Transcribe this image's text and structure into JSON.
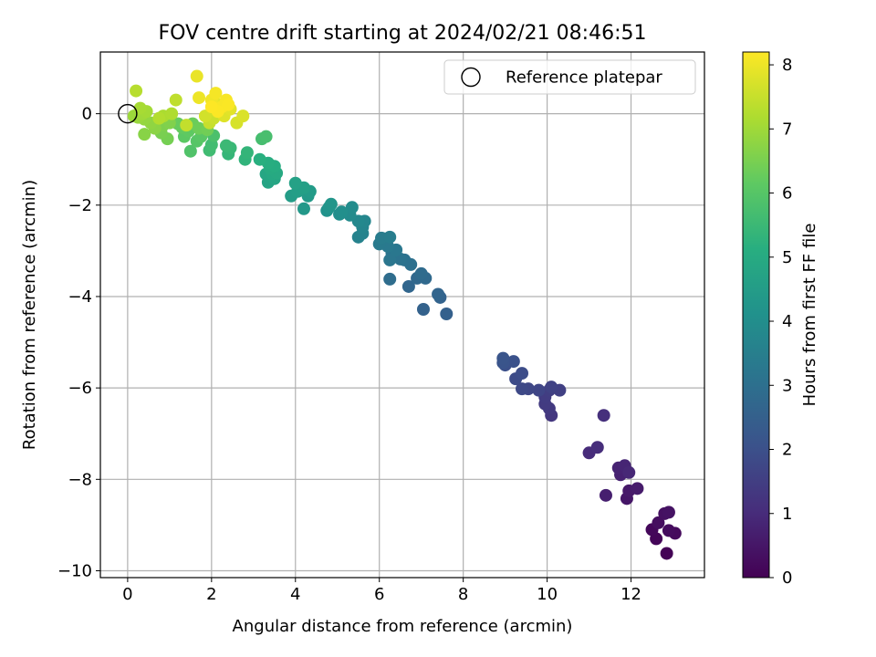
{
  "chart_data": {
    "type": "scatter",
    "title": "FOV centre drift starting at 2024/02/21 08:46:51",
    "xlabel": "Angular distance from reference (arcmin)",
    "ylabel": "Rotation from reference (arcmin)",
    "xlim": [
      -0.65,
      13.75
    ],
    "ylim": [
      -10.15,
      1.35
    ],
    "xticks": [
      0,
      2,
      4,
      6,
      8,
      10,
      12
    ],
    "yticks": [
      0,
      -2,
      -4,
      -6,
      -8,
      -10
    ],
    "grid": true,
    "legend": {
      "placement": "top-right",
      "entries": [
        "Reference platepar"
      ]
    },
    "reference_point": {
      "x": 0,
      "y": 0,
      "label": "Reference platepar"
    },
    "colorbar": {
      "label": "Hours from first FF file",
      "min": 0,
      "max": 8.2,
      "ticks": [
        0,
        1,
        2,
        3,
        4,
        5,
        6,
        7,
        8
      ],
      "colormap": "viridis"
    },
    "points": [
      [
        12.85,
        -9.62,
        0.05
      ],
      [
        12.6,
        -9.3,
        0.1
      ],
      [
        12.5,
        -9.1,
        0.15
      ],
      [
        13.05,
        -9.18,
        0.2
      ],
      [
        12.9,
        -9.12,
        0.25
      ],
      [
        12.65,
        -8.95,
        0.3
      ],
      [
        12.8,
        -8.75,
        0.35
      ],
      [
        12.9,
        -8.72,
        0.4
      ],
      [
        11.9,
        -8.42,
        0.5
      ],
      [
        11.95,
        -8.25,
        0.55
      ],
      [
        12.15,
        -8.2,
        0.6
      ],
      [
        11.4,
        -8.35,
        0.7
      ],
      [
        11.75,
        -7.9,
        0.75
      ],
      [
        11.7,
        -7.75,
        0.8
      ],
      [
        11.85,
        -7.7,
        0.85
      ],
      [
        11.95,
        -7.85,
        0.9
      ],
      [
        11.0,
        -7.42,
        1.0
      ],
      [
        11.2,
        -7.3,
        1.05
      ],
      [
        11.35,
        -6.6,
        1.1
      ],
      [
        10.1,
        -6.6,
        1.3
      ],
      [
        10.05,
        -6.45,
        1.35
      ],
      [
        9.95,
        -6.35,
        1.4
      ],
      [
        9.95,
        -6.2,
        1.45
      ],
      [
        10.05,
        -6.05,
        1.5
      ],
      [
        10.3,
        -6.05,
        1.55
      ],
      [
        10.1,
        -5.98,
        1.6
      ],
      [
        9.8,
        -6.05,
        1.7
      ],
      [
        9.55,
        -6.02,
        1.75
      ],
      [
        9.4,
        -6.02,
        1.8
      ],
      [
        9.25,
        -5.8,
        1.85
      ],
      [
        9.4,
        -5.68,
        1.9
      ],
      [
        9.0,
        -5.5,
        2.0
      ],
      [
        9.2,
        -5.42,
        2.05
      ],
      [
        8.95,
        -5.45,
        2.1
      ],
      [
        8.95,
        -5.35,
        2.15
      ],
      [
        7.6,
        -4.38,
        2.5
      ],
      [
        7.05,
        -4.28,
        2.55
      ],
      [
        7.45,
        -4.02,
        2.6
      ],
      [
        7.4,
        -3.95,
        2.65
      ],
      [
        6.7,
        -3.78,
        2.7
      ],
      [
        6.9,
        -3.6,
        2.75
      ],
      [
        7.1,
        -3.6,
        2.8
      ],
      [
        7.0,
        -3.5,
        2.85
      ],
      [
        6.25,
        -3.62,
        2.9
      ],
      [
        6.75,
        -3.3,
        3.0
      ],
      [
        6.6,
        -3.2,
        3.05
      ],
      [
        6.5,
        -3.18,
        3.1
      ],
      [
        6.3,
        -3.05,
        3.15
      ],
      [
        6.25,
        -3.2,
        3.2
      ],
      [
        6.4,
        -2.98,
        3.25
      ],
      [
        6.2,
        -2.9,
        3.3
      ],
      [
        6.0,
        -2.85,
        3.35
      ],
      [
        6.05,
        -2.72,
        3.4
      ],
      [
        6.25,
        -2.7,
        3.45
      ],
      [
        5.5,
        -2.7,
        3.6
      ],
      [
        5.6,
        -2.62,
        3.65
      ],
      [
        5.6,
        -2.48,
        3.7
      ],
      [
        5.65,
        -2.35,
        3.75
      ],
      [
        5.5,
        -2.35,
        3.8
      ],
      [
        5.3,
        -2.22,
        3.9
      ],
      [
        5.35,
        -2.05,
        3.95
      ],
      [
        5.05,
        -2.2,
        4.0
      ],
      [
        5.1,
        -2.15,
        4.05
      ],
      [
        4.75,
        -2.12,
        4.15
      ],
      [
        4.8,
        -2.05,
        4.2
      ],
      [
        4.85,
        -1.98,
        4.25
      ],
      [
        4.2,
        -2.08,
        4.35
      ],
      [
        4.3,
        -1.8,
        4.4
      ],
      [
        4.35,
        -1.7,
        4.45
      ],
      [
        3.9,
        -1.8,
        4.5
      ],
      [
        4.05,
        -1.7,
        4.55
      ],
      [
        4.2,
        -1.62,
        4.6
      ],
      [
        4.0,
        -1.52,
        4.65
      ],
      [
        3.35,
        -1.5,
        4.75
      ],
      [
        3.5,
        -1.42,
        4.8
      ],
      [
        3.3,
        -1.32,
        4.85
      ],
      [
        3.45,
        -1.32,
        4.9
      ],
      [
        3.55,
        -1.3,
        4.95
      ],
      [
        3.4,
        -1.2,
        5.0
      ],
      [
        3.5,
        -1.15,
        5.05
      ],
      [
        3.35,
        -1.08,
        5.1
      ],
      [
        3.15,
        -1.0,
        5.15
      ],
      [
        2.8,
        -1.0,
        5.3
      ],
      [
        2.85,
        -0.85,
        5.35
      ],
      [
        2.4,
        -0.88,
        5.4
      ],
      [
        2.45,
        -0.75,
        5.45
      ],
      [
        2.35,
        -0.7,
        5.5
      ],
      [
        1.95,
        -0.8,
        5.6
      ],
      [
        2.0,
        -0.68,
        5.65
      ],
      [
        3.2,
        -0.55,
        5.7
      ],
      [
        3.3,
        -0.5,
        5.75
      ],
      [
        2.05,
        -0.48,
        5.8
      ],
      [
        1.5,
        -0.82,
        5.9
      ],
      [
        1.65,
        -0.6,
        6.0
      ],
      [
        1.75,
        -0.5,
        6.05
      ],
      [
        1.35,
        -0.5,
        6.1
      ],
      [
        1.45,
        -0.38,
        6.15
      ],
      [
        1.3,
        -0.3,
        6.2
      ],
      [
        1.2,
        -0.22,
        6.25
      ],
      [
        1.55,
        -0.22,
        6.3
      ],
      [
        1.7,
        -0.32,
        6.35
      ],
      [
        1.9,
        -0.35,
        6.4
      ],
      [
        0.95,
        -0.55,
        6.45
      ],
      [
        0.8,
        -0.42,
        6.5
      ],
      [
        0.85,
        -0.25,
        6.55
      ],
      [
        1.0,
        -0.2,
        6.6
      ],
      [
        0.4,
        -0.45,
        6.7
      ],
      [
        0.65,
        -0.32,
        6.75
      ],
      [
        0.55,
        -0.2,
        6.8
      ],
      [
        0.4,
        -0.12,
        6.85
      ],
      [
        0.25,
        -0.08,
        6.9
      ],
      [
        0.15,
        -0.05,
        6.95
      ],
      [
        0.35,
        0.0,
        7.0
      ],
      [
        0.45,
        0.05,
        7.05
      ],
      [
        0.3,
        0.12,
        7.1
      ],
      [
        0.85,
        -0.05,
        7.15
      ],
      [
        1.05,
        0.0,
        7.2
      ],
      [
        0.75,
        -0.1,
        7.25
      ],
      [
        0.2,
        0.5,
        7.3
      ],
      [
        1.15,
        0.3,
        7.4
      ],
      [
        1.4,
        -0.25,
        7.45
      ],
      [
        1.95,
        -0.2,
        7.5
      ],
      [
        2.05,
        -0.1,
        7.55
      ],
      [
        2.1,
        0.05,
        7.6
      ],
      [
        1.85,
        -0.05,
        7.65
      ],
      [
        2.6,
        -0.2,
        7.7
      ],
      [
        2.75,
        -0.05,
        7.75
      ],
      [
        2.3,
        -0.05,
        7.8
      ],
      [
        2.45,
        0.1,
        7.85
      ],
      [
        2.2,
        0.2,
        7.9
      ],
      [
        1.65,
        0.82,
        7.95
      ],
      [
        1.7,
        0.35,
        8.0
      ],
      [
        2.0,
        0.3,
        8.05
      ],
      [
        2.1,
        0.45,
        8.1
      ],
      [
        2.35,
        0.3,
        8.12
      ],
      [
        2.25,
        0.15,
        8.14
      ],
      [
        2.4,
        0.2,
        8.16
      ],
      [
        2.15,
        0.05,
        8.18
      ],
      [
        2.0,
        0.15,
        8.2
      ]
    ]
  }
}
